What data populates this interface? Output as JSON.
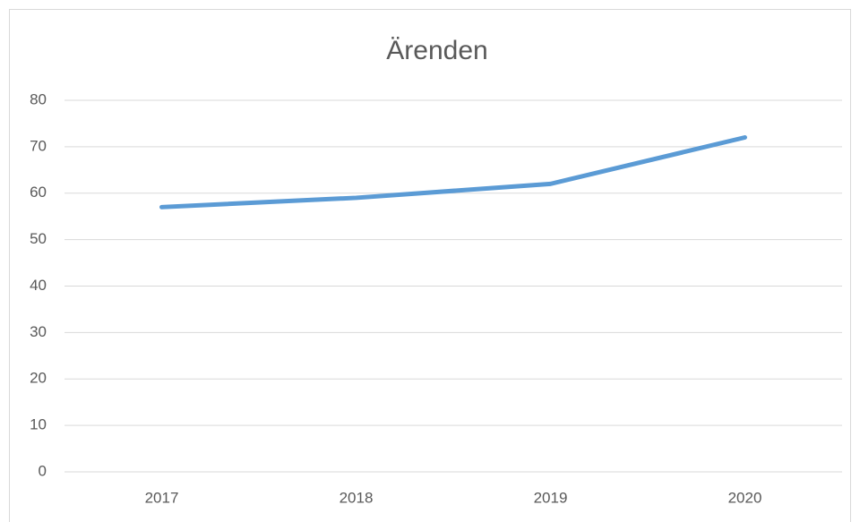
{
  "chart_data": {
    "type": "line",
    "title": "Ärenden",
    "categories": [
      "2017",
      "2018",
      "2019",
      "2020"
    ],
    "values": [
      57,
      59,
      62,
      72
    ],
    "color": "#5b9bd5",
    "ylim": [
      0,
      80
    ],
    "yticks": [
      0,
      10,
      20,
      30,
      40,
      50,
      60,
      70,
      80
    ],
    "grid": true
  }
}
